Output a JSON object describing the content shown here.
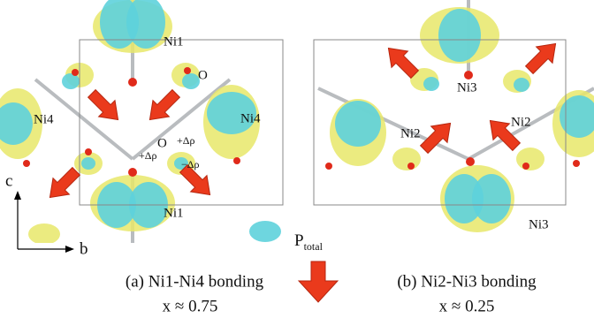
{
  "panel_a": {
    "atoms": [
      "Ni1",
      "O",
      "Ni4",
      "Ni4",
      "O",
      "Ni1"
    ],
    "charge_labels": [
      "+Δρ",
      "+Δρ",
      "−Δρ"
    ],
    "caption": "(a) Ni1-Ni4 bonding",
    "composition": "x ≈ 0.75"
  },
  "panel_b": {
    "atoms": [
      "Ni3",
      "Ni2",
      "Ni2",
      "Ni3"
    ],
    "caption": "(b) Ni2-Ni3 bonding",
    "composition": "x ≈ 0.25"
  },
  "axes": {
    "vertical": "c",
    "horizontal": "b"
  },
  "polarization": {
    "symbol": "P",
    "subscript": "total"
  }
}
